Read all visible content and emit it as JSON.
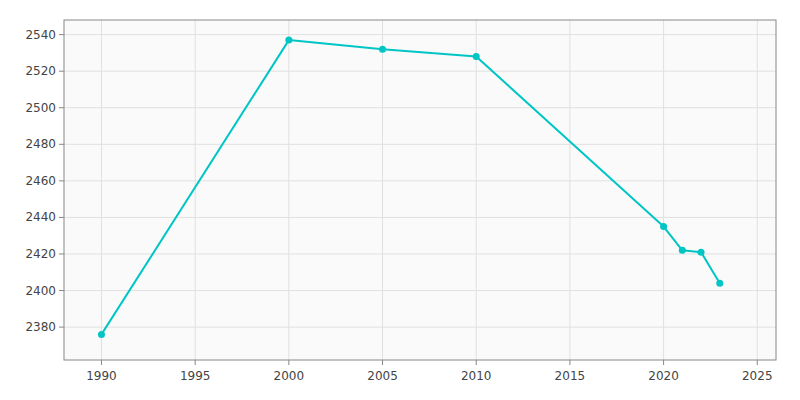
{
  "chart_data": {
    "type": "line",
    "x": [
      1990,
      2000,
      2005,
      2010,
      2020,
      2021,
      2022,
      2023
    ],
    "values": [
      2376,
      2537,
      2532,
      2528,
      2435,
      2422,
      2421,
      2404
    ],
    "color": "#00c5c5",
    "marker": "circle",
    "xlim": [
      1988,
      2026
    ],
    "ylim": [
      2362,
      2548
    ],
    "xticks": [
      1990,
      1995,
      2000,
      2005,
      2010,
      2015,
      2020,
      2025
    ],
    "yticks": [
      2380,
      2400,
      2420,
      2440,
      2460,
      2480,
      2500,
      2520,
      2540
    ],
    "grid": true
  }
}
